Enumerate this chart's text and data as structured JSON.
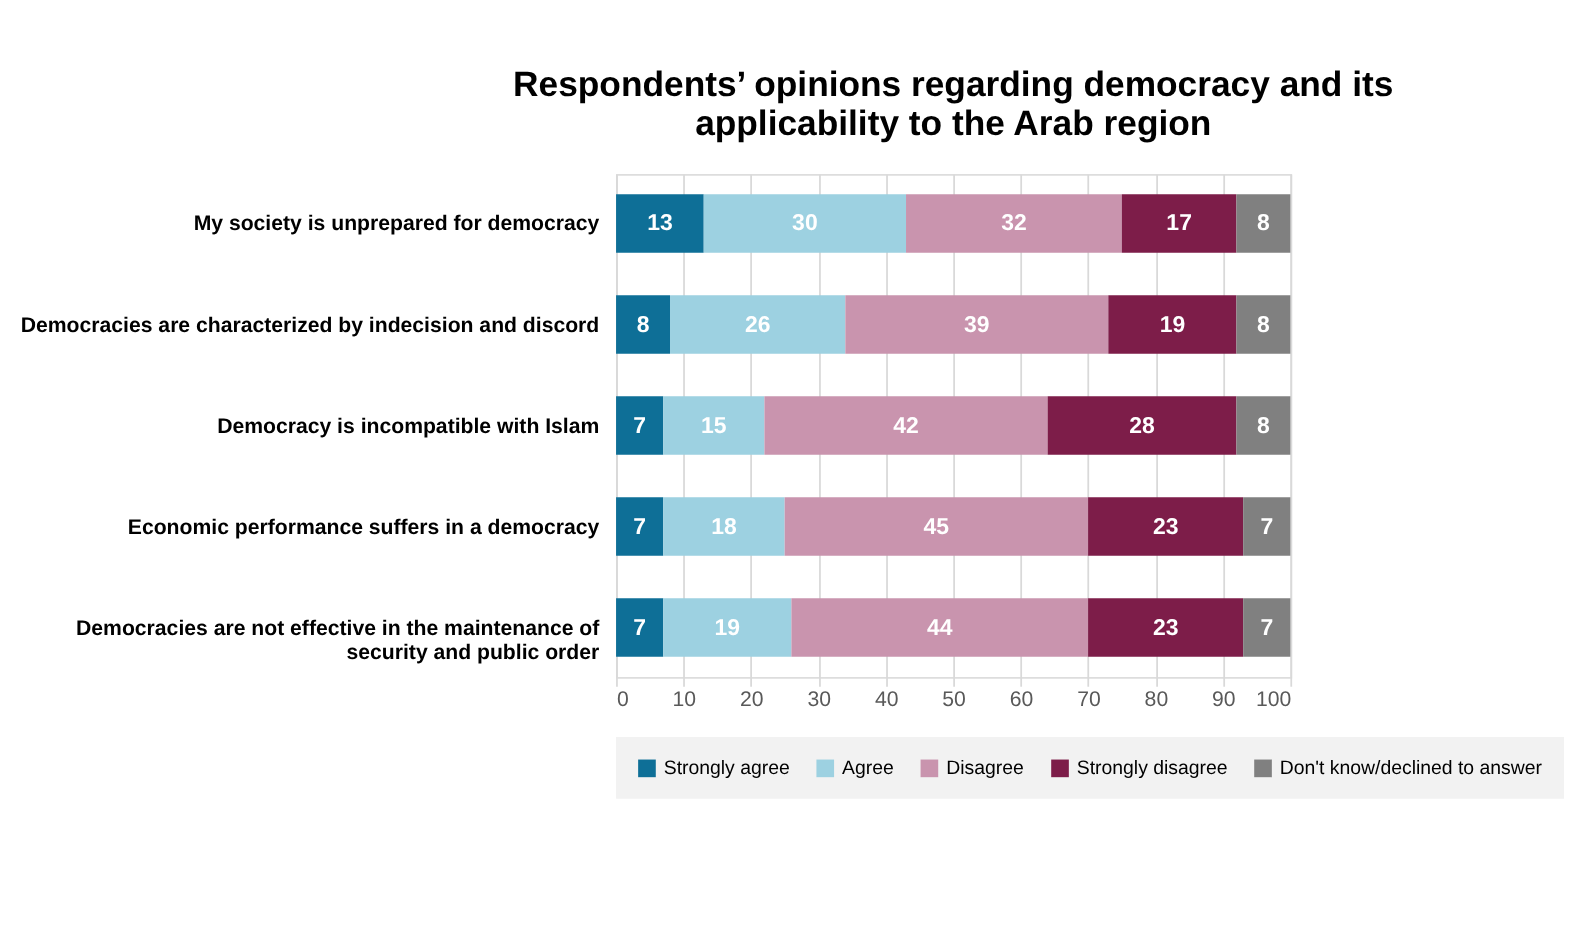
{
  "chart_data": {
    "type": "bar",
    "orientation": "horizontal",
    "stacked": true,
    "title": "Respondents’ opinions regarding democracy and its applicability to the Arab region",
    "categories": [
      "My society is unprepared for democracy",
      "Democracies are characterized by indecision and discord",
      "Democracy is incompatible with Islam",
      "Economic performance suffers in a democracy",
      "Democracies are not effective in the maintenance of security and public order"
    ],
    "series": [
      {
        "name": "Strongly agree",
        "color": "#0e6f97",
        "values": [
          13,
          8,
          7,
          7,
          7
        ]
      },
      {
        "name": "Agree",
        "color": "#9dd1e1",
        "values": [
          30,
          26,
          15,
          18,
          19
        ]
      },
      {
        "name": "Disagree",
        "color": "#c994ae",
        "values": [
          32,
          39,
          42,
          45,
          44
        ]
      },
      {
        "name": "Strongly disagree",
        "color": "#7d1d49",
        "values": [
          17,
          19,
          28,
          23,
          23
        ]
      },
      {
        "name": "Don't know/declined to answer",
        "color": "#808080",
        "values": [
          8,
          8,
          8,
          7,
          7
        ]
      }
    ],
    "xlim": [
      0,
      100
    ],
    "xticks": [
      0,
      10,
      20,
      30,
      40,
      50,
      60,
      70,
      80,
      90,
      100
    ],
    "grid": "x",
    "legend": "bottom",
    "data_labels": true
  }
}
